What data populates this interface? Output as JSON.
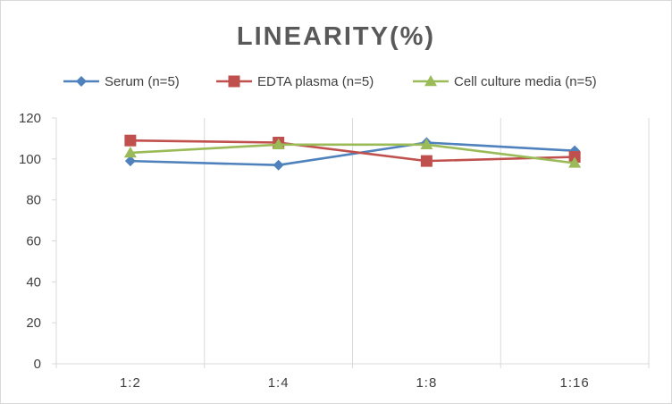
{
  "chart_data": {
    "type": "line",
    "title": "LINEARITY(%)",
    "categories": [
      "1:2",
      "1:4",
      "1:8",
      "1:16"
    ],
    "ylim": [
      0,
      120
    ],
    "yticks": [
      0,
      20,
      40,
      60,
      80,
      100,
      120
    ],
    "grid": "vertical",
    "legend": "top",
    "series": [
      {
        "name": "Serum (n=5)",
        "values": [
          99,
          97,
          108,
          104
        ],
        "color": "#4f81bd",
        "marker": "diamond"
      },
      {
        "name": "EDTA plasma (n=5)",
        "values": [
          109,
          108,
          99,
          101
        ],
        "color": "#c0504d",
        "marker": "square"
      },
      {
        "name": "Cell culture media (n=5)",
        "values": [
          103,
          107,
          107,
          98
        ],
        "color": "#9bbb59",
        "marker": "triangle"
      }
    ]
  }
}
